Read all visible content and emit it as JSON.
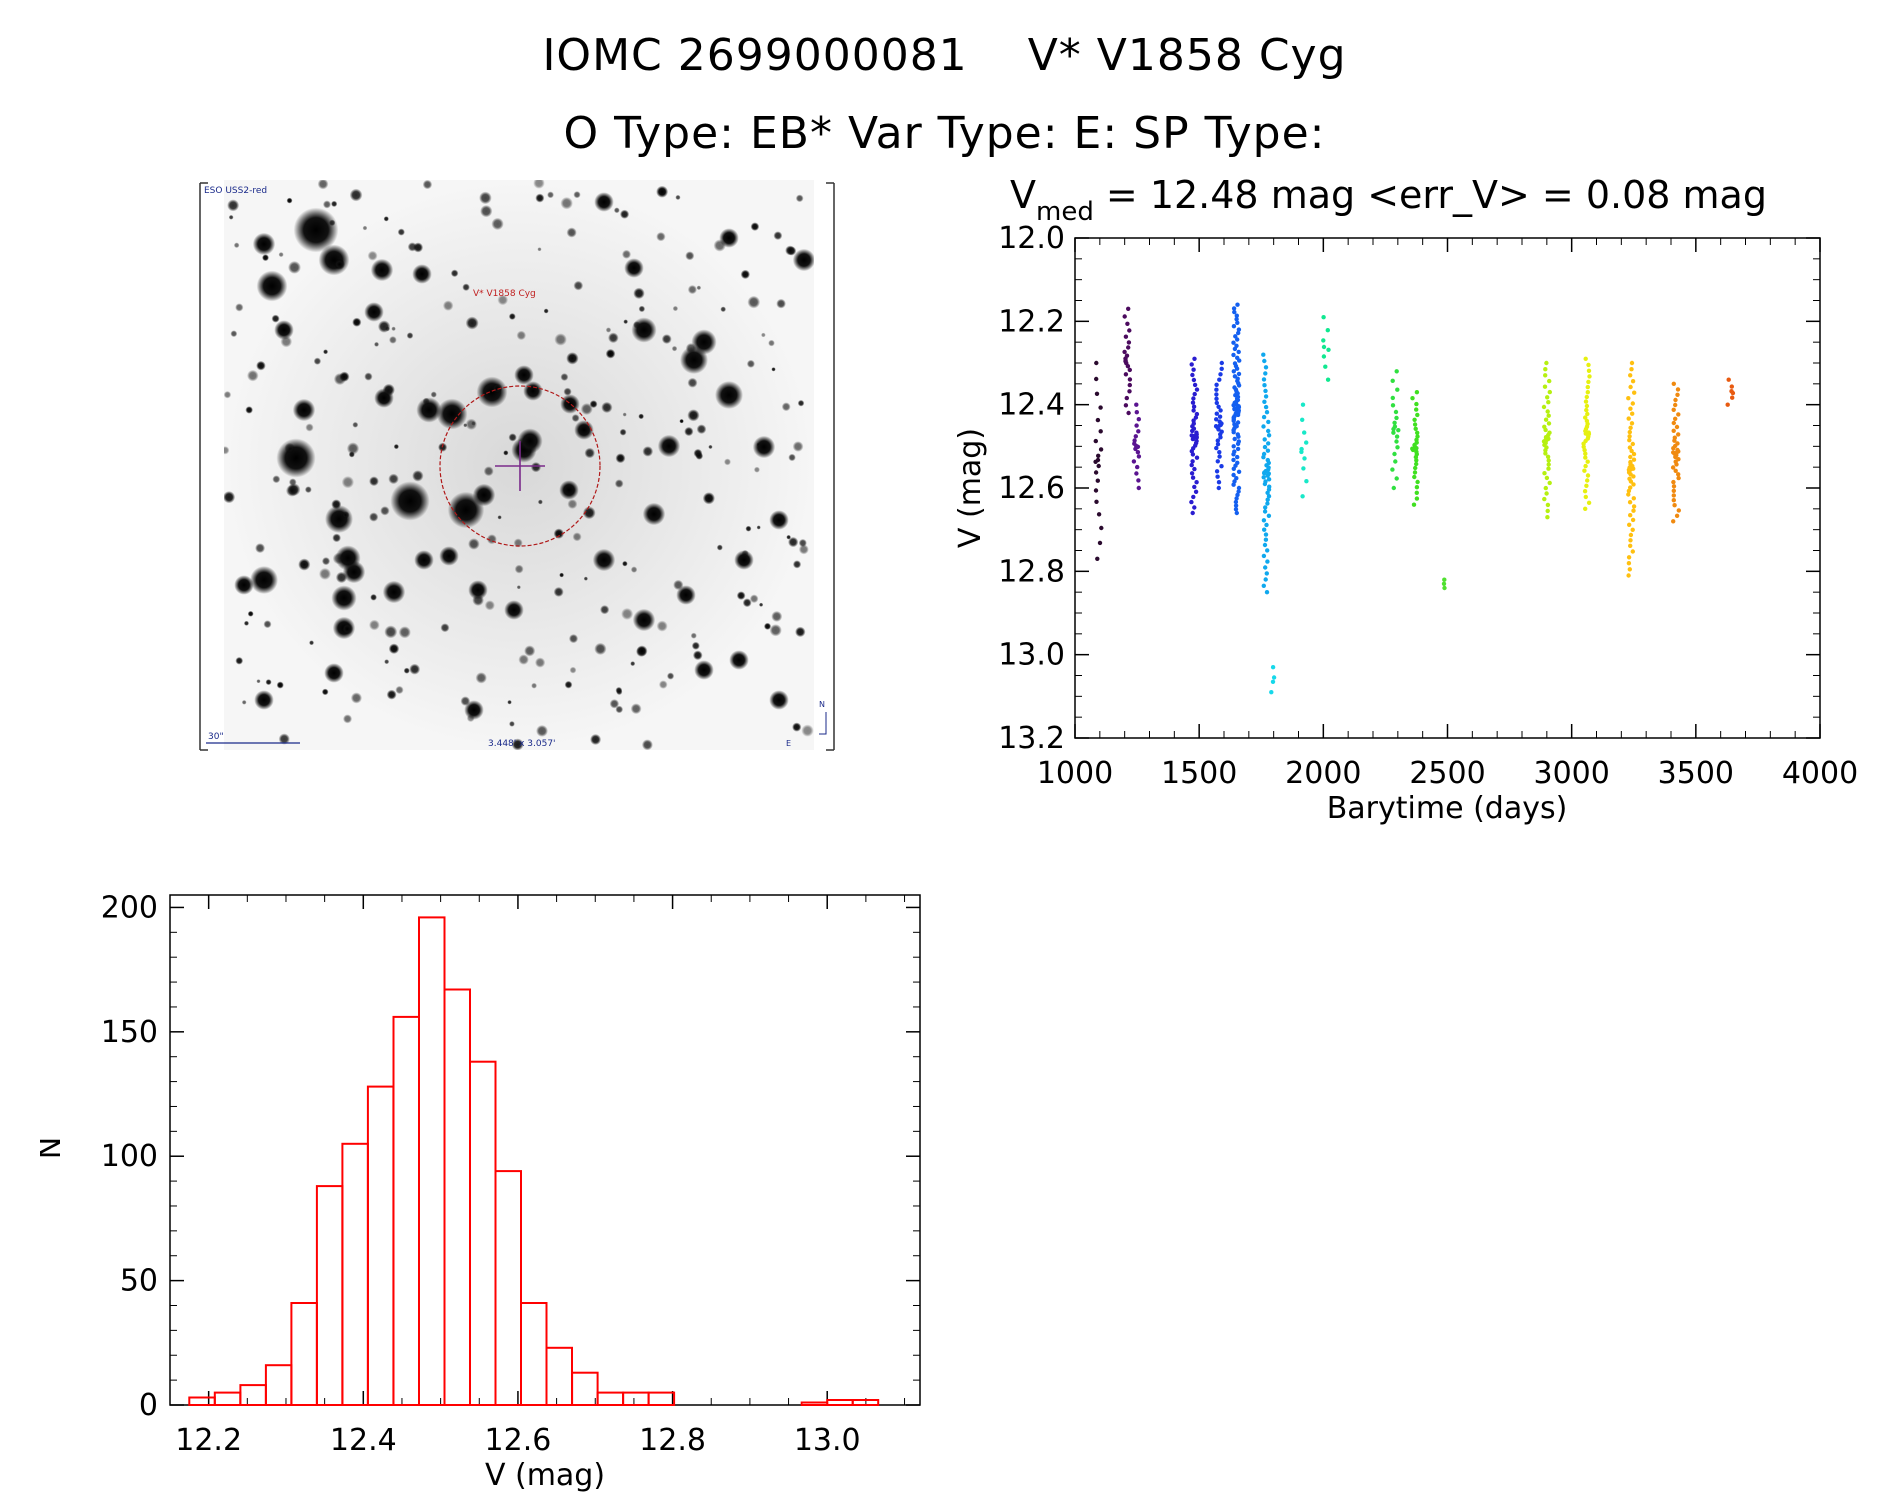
{
  "header": {
    "line1_id": "IOMC 2699000081",
    "line1_name": "V* V1858 Cyg",
    "line2": "O Type: EB*  Var Type: E:  SP Type:"
  },
  "image_panel": {
    "survey_label": "ESO USS2-red",
    "target_label": "V* V1858 Cyg",
    "scale_label": "30\"",
    "fov_label": "3.448' x 3.057'",
    "north_label": "N",
    "east_label": "E"
  },
  "chart_data": [
    {
      "type": "scatter",
      "title_prefix": "V",
      "title_sub": "med",
      "title_rest": " = 12.48 mag <err_V> = 0.08 mag",
      "xlabel": "Barytime (days)",
      "ylabel": "V (mag)",
      "xlim": [
        1000,
        4000
      ],
      "ylim": [
        13.2,
        12.0
      ],
      "inverted_y": true,
      "xticks": [
        "1000",
        "1500",
        "2000",
        "2500",
        "3000",
        "3500",
        "4000"
      ],
      "yticks": [
        "12.0",
        "12.2",
        "12.4",
        "12.6",
        "12.8",
        "13.0",
        "13.2"
      ],
      "groups": [
        {
          "x": 1095,
          "ymin": 12.3,
          "ymax": 12.77,
          "n": 20,
          "color": "#2a0a2e"
        },
        {
          "x": 1210,
          "ymin": 12.17,
          "ymax": 12.42,
          "n": 22,
          "color": "#4b0a5e"
        },
        {
          "x": 1248,
          "ymin": 12.4,
          "ymax": 12.6,
          "n": 18,
          "color": "#5a1490"
        },
        {
          "x": 1480,
          "ymin": 12.29,
          "ymax": 12.66,
          "n": 45,
          "color": "#2a1dd0"
        },
        {
          "x": 1580,
          "ymin": 12.3,
          "ymax": 12.6,
          "n": 35,
          "color": "#1a3ae6"
        },
        {
          "x": 1650,
          "ymin": 12.16,
          "ymax": 12.66,
          "n": 90,
          "color": "#1460f0"
        },
        {
          "x": 1770,
          "ymin": 12.28,
          "ymax": 12.85,
          "n": 60,
          "color": "#10a8ee"
        },
        {
          "x": 1800,
          "ymin": 13.03,
          "ymax": 13.09,
          "n": 4,
          "color": "#16d8ea"
        },
        {
          "x": 1920,
          "ymin": 12.4,
          "ymax": 12.62,
          "n": 10,
          "color": "#18e8c8"
        },
        {
          "x": 2010,
          "ymin": 12.19,
          "ymax": 12.34,
          "n": 8,
          "color": "#10e890"
        },
        {
          "x": 2290,
          "ymin": 12.32,
          "ymax": 12.6,
          "n": 20,
          "color": "#30e040"
        },
        {
          "x": 2370,
          "ymin": 12.37,
          "ymax": 12.64,
          "n": 30,
          "color": "#40e020"
        },
        {
          "x": 2480,
          "ymin": 12.82,
          "ymax": 12.84,
          "n": 3,
          "color": "#50e030"
        },
        {
          "x": 2900,
          "ymin": 12.3,
          "ymax": 12.67,
          "n": 40,
          "color": "#b6f010"
        },
        {
          "x": 3060,
          "ymin": 12.29,
          "ymax": 12.65,
          "n": 40,
          "color": "#e6f010"
        },
        {
          "x": 3240,
          "ymin": 12.3,
          "ymax": 12.81,
          "n": 55,
          "color": "#ffc010"
        },
        {
          "x": 3420,
          "ymin": 12.35,
          "ymax": 12.68,
          "n": 40,
          "color": "#f08a10"
        },
        {
          "x": 3640,
          "ymin": 12.34,
          "ymax": 12.4,
          "n": 6,
          "color": "#e85a10"
        }
      ]
    },
    {
      "type": "bar",
      "xlabel": "V (mag)",
      "ylabel": "N",
      "xlim": [
        12.15,
        13.12
      ],
      "ylim": [
        0,
        205
      ],
      "bin_start": 12.175,
      "bin_width": 0.033,
      "xticks": [
        "12.2",
        "12.4",
        "12.6",
        "12.8",
        "13.0"
      ],
      "yticks": [
        "0",
        "50",
        "100",
        "150",
        "200"
      ],
      "values": [
        3,
        5,
        8,
        16,
        41,
        88,
        105,
        128,
        156,
        196,
        167,
        138,
        94,
        41,
        23,
        13,
        5,
        5,
        5,
        0,
        0,
        0,
        0,
        0,
        1,
        2,
        2
      ],
      "color": "#ff0000"
    }
  ]
}
